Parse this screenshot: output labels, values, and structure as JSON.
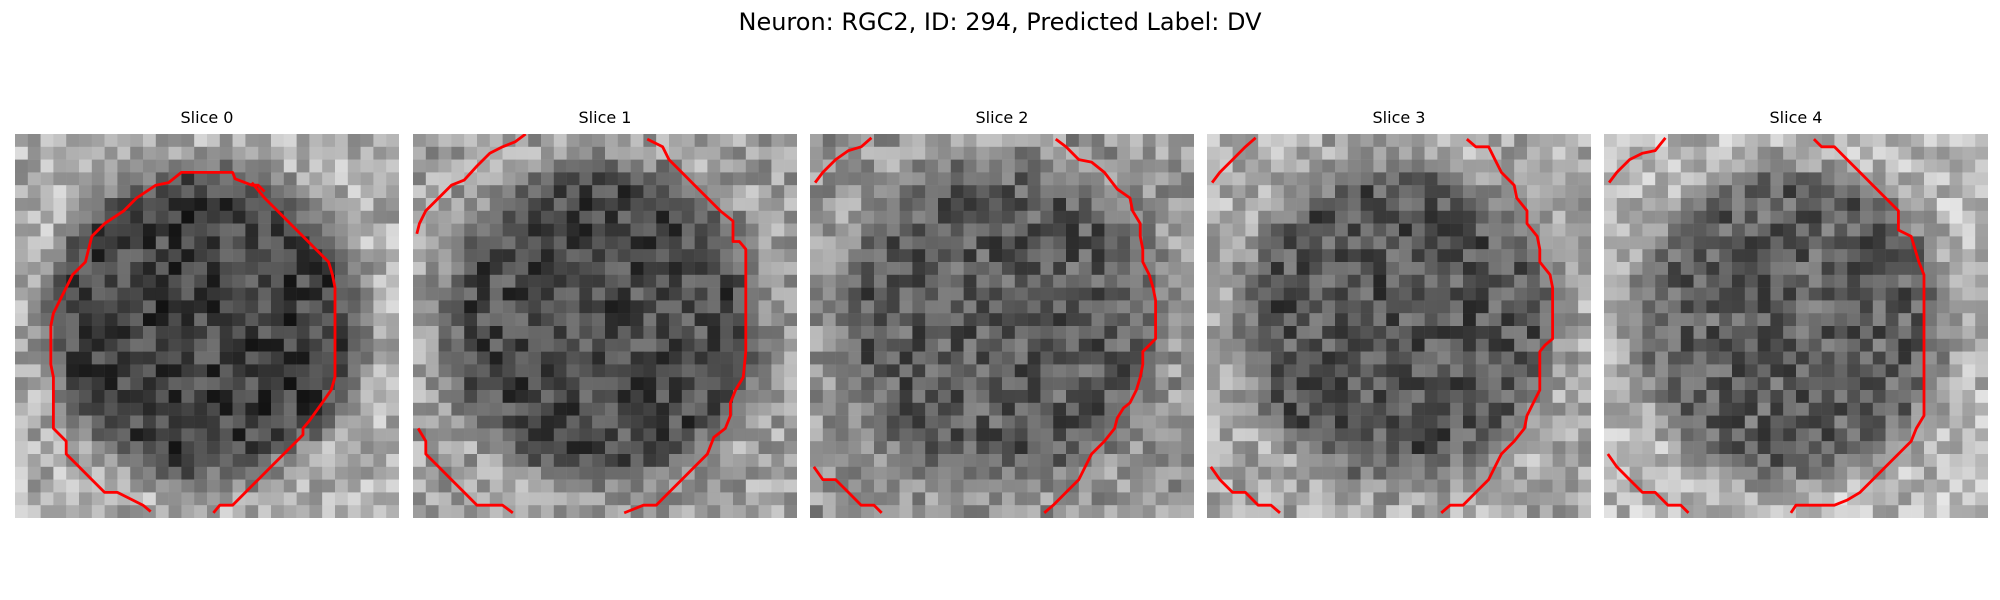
{
  "figure": {
    "title": "Neuron: RGC2, ID: 294, Predicted Label: DV"
  },
  "panels": [
    {
      "title": "Slice 0",
      "seed": 11,
      "interior": -30,
      "outer": 175
    },
    {
      "title": "Slice 1",
      "seed": 23,
      "interior": -20,
      "outer": 160
    },
    {
      "title": "Slice 2",
      "seed": 37,
      "interior": -5,
      "outer": 150
    },
    {
      "title": "Slice 3",
      "seed": 41,
      "interior": -10,
      "outer": 170
    },
    {
      "title": "Slice 4",
      "seed": 59,
      "interior": 0,
      "outer": 185
    }
  ],
  "colors": {
    "contour": "#ff0000",
    "background": "#ffffff",
    "text": "#000000"
  }
}
